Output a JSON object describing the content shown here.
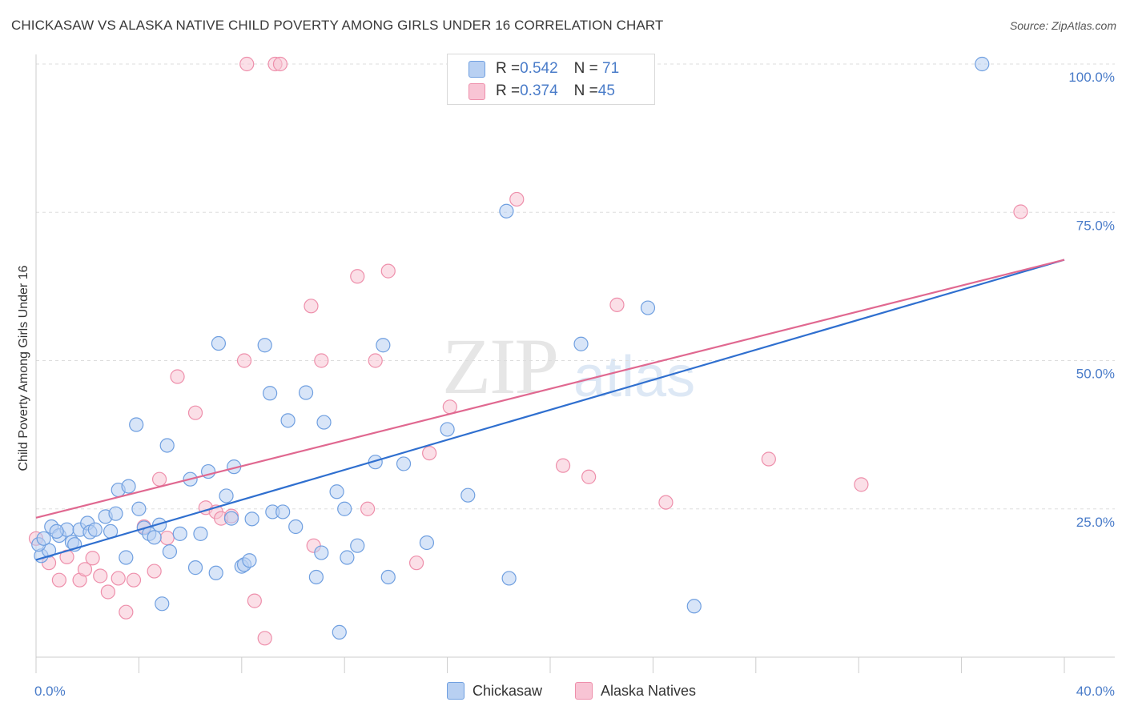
{
  "title": "CHICKASAW VS ALASKA NATIVE CHILD POVERTY AMONG GIRLS UNDER 16 CORRELATION CHART",
  "source": "Source: ZipAtlas.com",
  "watermark": {
    "zip": "ZIP",
    "atlas": "atlas"
  },
  "colors": {
    "chickasaw_fill": "#b8d0f2",
    "chickasaw_stroke": "#6f9fe0",
    "chickasaw_line": "#2f6fcf",
    "alaska_fill": "#f8c4d4",
    "alaska_stroke": "#ee8fab",
    "alaska_line": "#e06890",
    "tick_text": "#4a7cc9",
    "grid": "#dddddd"
  },
  "legend_top": {
    "rows": [
      {
        "r_label": "R = ",
        "r_value": "0.542",
        "n_label": "N = ",
        "n_value": " 71"
      },
      {
        "r_label": "R = ",
        "r_value": "0.374",
        "n_label": "N = ",
        "n_value": "45"
      }
    ]
  },
  "legend_bottom": {
    "chickasaw": "Chickasaw",
    "alaska": "Alaska Natives"
  },
  "chart_data": {
    "type": "scatter",
    "title": "CHICKASAW VS ALASKA NATIVE CHILD POVERTY AMONG GIRLS UNDER 16 CORRELATION CHART",
    "xlabel": "",
    "ylabel": "Child Poverty Among Girls Under 16",
    "xlim": [
      0,
      40
    ],
    "ylim": [
      0,
      100
    ],
    "x_tick_labels": [
      "0.0%",
      "40.0%"
    ],
    "y_ticks": [
      25,
      50,
      75,
      100
    ],
    "y_tick_labels": [
      "25.0%",
      "50.0%",
      "75.0%",
      "100.0%"
    ],
    "grid": true,
    "legend": "top-center",
    "series": [
      {
        "name": "Chickasaw",
        "R": 0.542,
        "N": 71,
        "trend": {
          "x": [
            0,
            40
          ],
          "y": [
            16.4,
            67.0
          ]
        },
        "points": [
          [
            0.2,
            17.1
          ],
          [
            0.5,
            18.0
          ],
          [
            0.6,
            22.0
          ],
          [
            0.9,
            20.5
          ],
          [
            1.2,
            21.5
          ],
          [
            1.4,
            19.4
          ],
          [
            1.5,
            19.0
          ],
          [
            1.7,
            21.5
          ],
          [
            2.0,
            22.6
          ],
          [
            2.1,
            21.1
          ],
          [
            2.3,
            21.5
          ],
          [
            2.7,
            23.7
          ],
          [
            2.9,
            21.2
          ],
          [
            3.1,
            24.2
          ],
          [
            3.2,
            28.2
          ],
          [
            3.5,
            16.8
          ],
          [
            3.6,
            28.8
          ],
          [
            3.9,
            39.2
          ],
          [
            4.0,
            25.0
          ],
          [
            4.2,
            21.8
          ],
          [
            4.4,
            20.8
          ],
          [
            4.6,
            20.2
          ],
          [
            4.8,
            22.3
          ],
          [
            4.9,
            9.0
          ],
          [
            5.1,
            35.7
          ],
          [
            5.2,
            17.8
          ],
          [
            5.6,
            20.8
          ],
          [
            6.0,
            30.0
          ],
          [
            6.2,
            15.1
          ],
          [
            6.4,
            20.8
          ],
          [
            6.7,
            31.3
          ],
          [
            7.0,
            14.2
          ],
          [
            7.1,
            52.9
          ],
          [
            7.4,
            27.2
          ],
          [
            7.6,
            23.4
          ],
          [
            7.7,
            32.1
          ],
          [
            8.0,
            15.3
          ],
          [
            8.1,
            15.6
          ],
          [
            8.3,
            16.3
          ],
          [
            8.4,
            23.3
          ],
          [
            8.9,
            52.6
          ],
          [
            9.1,
            44.5
          ],
          [
            9.2,
            24.5
          ],
          [
            9.6,
            24.5
          ],
          [
            9.8,
            39.9
          ],
          [
            10.1,
            22.0
          ],
          [
            10.5,
            44.6
          ],
          [
            10.9,
            13.5
          ],
          [
            11.1,
            17.6
          ],
          [
            11.2,
            39.6
          ],
          [
            11.7,
            27.9
          ],
          [
            11.8,
            4.2
          ],
          [
            12.0,
            25.0
          ],
          [
            12.1,
            16.8
          ],
          [
            12.5,
            18.8
          ],
          [
            13.2,
            32.9
          ],
          [
            13.5,
            52.6
          ],
          [
            13.7,
            13.5
          ],
          [
            14.3,
            32.6
          ],
          [
            15.2,
            19.3
          ],
          [
            16.0,
            38.4
          ],
          [
            16.8,
            27.3
          ],
          [
            18.3,
            75.2
          ],
          [
            18.4,
            13.3
          ],
          [
            21.2,
            52.8
          ],
          [
            23.8,
            58.9
          ],
          [
            25.6,
            8.6
          ],
          [
            36.8,
            100.0
          ],
          [
            0.1,
            19.0
          ],
          [
            0.3,
            20.0
          ],
          [
            0.8,
            21.2
          ]
        ]
      },
      {
        "name": "Alaska Natives",
        "R": 0.374,
        "N": 45,
        "trend": {
          "x": [
            0,
            40
          ],
          "y": [
            23.5,
            67.0
          ]
        },
        "points": [
          [
            0.0,
            20.0
          ],
          [
            0.5,
            15.9
          ],
          [
            0.9,
            13.0
          ],
          [
            1.2,
            16.9
          ],
          [
            1.7,
            13.0
          ],
          [
            1.9,
            14.8
          ],
          [
            2.2,
            16.7
          ],
          [
            2.5,
            13.7
          ],
          [
            2.8,
            11.0
          ],
          [
            3.2,
            13.3
          ],
          [
            3.5,
            7.6
          ],
          [
            3.8,
            13.0
          ],
          [
            4.2,
            22.0
          ],
          [
            4.6,
            14.5
          ],
          [
            4.8,
            30.0
          ],
          [
            5.1,
            20.1
          ],
          [
            5.5,
            47.3
          ],
          [
            6.2,
            41.2
          ],
          [
            6.6,
            25.2
          ],
          [
            7.0,
            24.5
          ],
          [
            7.2,
            23.4
          ],
          [
            7.6,
            23.8
          ],
          [
            8.1,
            50.0
          ],
          [
            8.2,
            100.0
          ],
          [
            8.5,
            9.5
          ],
          [
            8.9,
            3.2
          ],
          [
            9.3,
            100.0
          ],
          [
            9.5,
            100.0
          ],
          [
            10.7,
            59.2
          ],
          [
            10.8,
            18.8
          ],
          [
            11.1,
            50.0
          ],
          [
            12.5,
            64.2
          ],
          [
            12.9,
            25.0
          ],
          [
            13.2,
            50.0
          ],
          [
            13.7,
            65.1
          ],
          [
            14.8,
            15.9
          ],
          [
            15.3,
            34.4
          ],
          [
            16.1,
            42.2
          ],
          [
            18.7,
            77.2
          ],
          [
            20.5,
            32.3
          ],
          [
            21.5,
            30.4
          ],
          [
            22.6,
            59.4
          ],
          [
            24.5,
            26.1
          ],
          [
            28.5,
            33.4
          ],
          [
            32.1,
            29.1
          ]
        ]
      }
    ],
    "extra_points_alaska": [
      [
        38.3,
        75.1
      ]
    ]
  }
}
